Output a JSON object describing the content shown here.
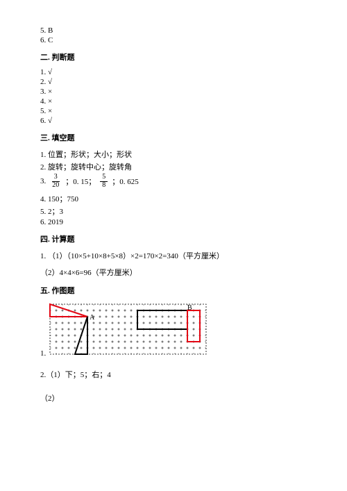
{
  "top": {
    "items": [
      "5. B",
      "6. C"
    ]
  },
  "sections": {
    "s2": {
      "heading": "二. 判断题",
      "items": [
        "1. √",
        "2. √",
        "3. ×",
        "4. ×",
        "5. ×",
        "6. √"
      ]
    },
    "s3": {
      "heading": "三. 填空题",
      "items": {
        "i1": "1. 位置；形状；大小；形状",
        "i2": "2. 旋转；旋转中心；旋转角",
        "i3": {
          "prefix": "3. ",
          "frac1": {
            "num": "3",
            "den": "20"
          },
          "mid1": " ；0. 15； ",
          "frac2": {
            "num": "5",
            "den": "8"
          },
          "mid2": " ；0. 625"
        },
        "i4": "4. 150；750",
        "i5": "5. 2；3",
        "i6": "6. 2019"
      }
    },
    "s4": {
      "heading": "四. 计算题",
      "items": {
        "i1a": "1. （1）（10×5+10×8+5×8）×2=170×2=340（平方厘米）",
        "i1b": "（2）4×4×6=96（平方厘米）"
      }
    },
    "s5": {
      "heading": "五. 作图题",
      "labels": {
        "q1": "1.",
        "A": "A",
        "B": "B",
        "q2": "2.（1）下；5；右；4",
        "q2b": "（2）"
      },
      "grid": {
        "cols": 25,
        "rows": 8,
        "cell": 9,
        "stroke": "#000000",
        "red": "#e30613",
        "label_fontsize": 10
      }
    }
  }
}
